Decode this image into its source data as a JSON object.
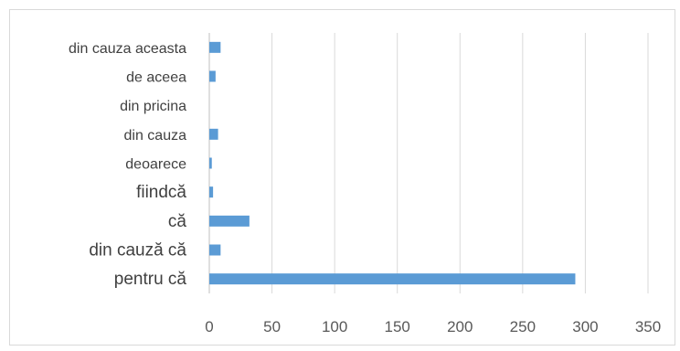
{
  "chart_data": {
    "type": "bar",
    "orientation": "horizontal",
    "title": "",
    "xlabel": "",
    "ylabel": "",
    "categories": [
      "din cauza aceasta",
      "de aceea",
      "din pricina",
      "din cauza",
      "deoarece",
      "fiindcă",
      "că",
      "din cauză că",
      "pentru că"
    ],
    "values": [
      9,
      5,
      0,
      7,
      2,
      3,
      32,
      9,
      292
    ],
    "xlim": [
      0,
      350
    ],
    "xticks": [
      "0",
      "50",
      "100",
      "150",
      "200",
      "250",
      "300",
      "350"
    ],
    "grid": "vertical",
    "legend": "none",
    "bar_color": "#5b9bd5",
    "grid_color": "#d9d9d9"
  }
}
